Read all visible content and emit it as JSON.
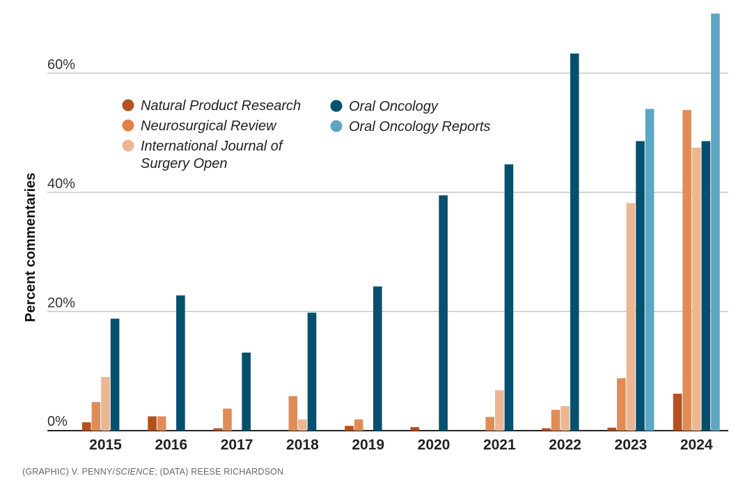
{
  "chart_data": {
    "type": "bar",
    "ylabel": "Percent commentaries",
    "xlabel": "",
    "ylim": [
      0,
      70
    ],
    "yticks": [
      {
        "value": 0,
        "label": "0%"
      },
      {
        "value": 20,
        "label": "20%"
      },
      {
        "value": 40,
        "label": "40%"
      },
      {
        "value": 60,
        "label": "60%"
      }
    ],
    "grid": true,
    "legend_position": "top-left",
    "categories": [
      "2015",
      "2016",
      "2017",
      "2018",
      "2019",
      "2020",
      "2021",
      "2022",
      "2023",
      "2024"
    ],
    "series": [
      {
        "name": "Natural Product Research",
        "color": "#b4501f",
        "values": [
          1.4,
          2.4,
          0.4,
          0,
          0.8,
          0.6,
          0,
          0.4,
          0.5,
          6.2
        ]
      },
      {
        "name": "Neurosurgical Review",
        "color": "#df8c57",
        "values": [
          4.8,
          2.4,
          3.7,
          5.8,
          1.9,
          0,
          2.3,
          3.5,
          8.8,
          53.8
        ]
      },
      {
        "name": "International Journal of Surgery Open",
        "color": "#ebb792",
        "values": [
          9.0,
          0,
          0,
          1.9,
          0,
          0,
          6.8,
          4.1,
          38.2,
          47.5
        ]
      },
      {
        "name": "Oral Oncology",
        "color": "#06506f",
        "values": [
          18.8,
          22.7,
          13.1,
          19.8,
          24.2,
          39.5,
          44.7,
          63.3,
          48.6,
          48.6
        ]
      },
      {
        "name": "Oral Oncology Reports",
        "color": "#5ca6c4",
        "values": [
          0,
          0,
          0,
          0,
          0,
          0,
          0,
          0,
          54.0,
          70.0
        ]
      }
    ],
    "legend": [
      {
        "label": "Natural Product Research",
        "color": "#b4501f"
      },
      {
        "label": "Neurosurgical Review",
        "color": "#e57f47"
      },
      {
        "label": "International Journal of Surgery Open",
        "color": "#ebb792",
        "lines": [
          "International Journal of",
          "Surgery Open"
        ]
      },
      {
        "label": "Oral Oncology",
        "color": "#06506f"
      },
      {
        "label": "Oral Oncology Reports",
        "color": "#5ca6c4"
      }
    ]
  },
  "credit": {
    "prefix": "(GRAPHIC) V. PENNY/",
    "italic": "SCIENCE",
    "suffix": "; (DATA) REESE RICHARDSON"
  }
}
